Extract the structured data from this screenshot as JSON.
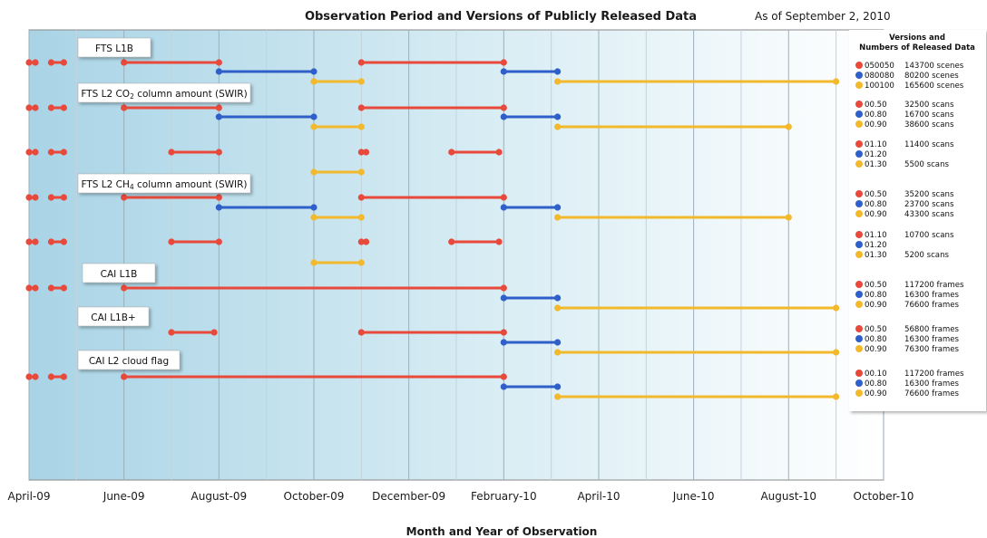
{
  "chart_data": {
    "type": "timeline",
    "title": "Observation Period and Versions of Publicly Released Data",
    "subtitle": "As of September 2, 2010",
    "xlabel": "Month and Year of Observation",
    "x_ticks": [
      "April-09",
      "June-09",
      "August-09",
      "October-09",
      "December-09",
      "February-10",
      "April-10",
      "June-10",
      "August-10",
      "October-10"
    ],
    "xlim": [
      "2009-04",
      "2010-10"
    ],
    "grid": "vertical monthly",
    "legend_title": "Versions and Numbers of Released Data",
    "colors": {
      "red": "#e8493a",
      "blue": "#2f5fc9",
      "yellow": "#f2b92c"
    },
    "products": [
      {
        "name": "FTS L1B",
        "series": [
          {
            "version": "050050",
            "count": "143700 scenes",
            "color": "red",
            "segments": [
              [
                "2009-04-01",
                "2009-04-05"
              ],
              [
                "2009-04-15",
                "2009-04-23"
              ],
              [
                "2009-06-01",
                "2009-08-01"
              ],
              [
                "2009-11-01",
                "2010-02-01"
              ]
            ]
          },
          {
            "version": "080080",
            "count": "80200 scenes",
            "color": "blue",
            "segments": [
              [
                "2009-08-01",
                "2009-10-01"
              ],
              [
                "2010-02-01",
                "2010-03-05"
              ]
            ]
          },
          {
            "version": "100100",
            "count": "165600 scenes",
            "color": "yellow",
            "segments": [
              [
                "2009-10-01",
                "2009-11-01"
              ],
              [
                "2010-03-05",
                "2010-09-01"
              ]
            ]
          }
        ]
      },
      {
        "name": "FTS L2 CO",
        "name_sub": "2",
        "name_rest": " column amount (SWIR)",
        "series": [
          {
            "version": "00.50",
            "count": "32500 scans",
            "color": "red",
            "segments": [
              [
                "2009-04-01",
                "2009-04-05"
              ],
              [
                "2009-04-15",
                "2009-04-23"
              ],
              [
                "2009-06-01",
                "2009-08-01"
              ],
              [
                "2009-11-01",
                "2010-02-01"
              ]
            ]
          },
          {
            "version": "00.80",
            "count": "16700 scans",
            "color": "blue",
            "segments": [
              [
                "2009-08-01",
                "2009-10-01"
              ],
              [
                "2010-02-01",
                "2010-03-05"
              ]
            ]
          },
          {
            "version": "00.90",
            "count": "38600 scans",
            "color": "yellow",
            "segments": [
              [
                "2009-10-01",
                "2009-11-01"
              ],
              [
                "2010-03-05",
                "2010-08-01"
              ]
            ]
          }
        ]
      },
      {
        "name": "",
        "series": [
          {
            "version": "01.10",
            "count": "11400 scans",
            "color": "red",
            "segments": [
              [
                "2009-04-01",
                "2009-04-05"
              ],
              [
                "2009-04-15",
                "2009-04-23"
              ],
              [
                "2009-07-01",
                "2009-08-01"
              ],
              [
                "2009-11-01",
                "2009-11-04"
              ],
              [
                "2009-12-28",
                "2010-01-28"
              ]
            ]
          },
          {
            "version": "01.20",
            "count": "",
            "color": "blue",
            "segments": []
          },
          {
            "version": "01.30",
            "count": "5500 scans",
            "color": "yellow",
            "segments": [
              [
                "2009-10-01",
                "2009-11-01"
              ]
            ]
          }
        ]
      },
      {
        "name": "FTS L2 CH",
        "name_sub": "4",
        "name_rest": " column amount (SWIR)",
        "series": [
          {
            "version": "00.50",
            "count": "35200 scans",
            "color": "red",
            "segments": [
              [
                "2009-04-01",
                "2009-04-05"
              ],
              [
                "2009-04-15",
                "2009-04-23"
              ],
              [
                "2009-06-01",
                "2009-08-01"
              ],
              [
                "2009-11-01",
                "2010-02-01"
              ]
            ]
          },
          {
            "version": "00.80",
            "count": "23700 scans",
            "color": "blue",
            "segments": [
              [
                "2009-08-01",
                "2009-10-01"
              ],
              [
                "2010-02-01",
                "2010-03-05"
              ]
            ]
          },
          {
            "version": "00.90",
            "count": "43300 scans",
            "color": "yellow",
            "segments": [
              [
                "2009-10-01",
                "2009-11-01"
              ],
              [
                "2010-03-05",
                "2010-08-01"
              ]
            ]
          }
        ]
      },
      {
        "name": "",
        "series": [
          {
            "version": "01.10",
            "count": "10700 scans",
            "color": "red",
            "segments": [
              [
                "2009-04-01",
                "2009-04-05"
              ],
              [
                "2009-04-15",
                "2009-04-23"
              ],
              [
                "2009-07-01",
                "2009-08-01"
              ],
              [
                "2009-11-01",
                "2009-11-04"
              ],
              [
                "2009-12-28",
                "2010-01-28"
              ]
            ]
          },
          {
            "version": "01.20",
            "count": "",
            "color": "blue",
            "segments": []
          },
          {
            "version": "01.30",
            "count": "5200 scans",
            "color": "yellow",
            "segments": [
              [
                "2009-10-01",
                "2009-11-01"
              ]
            ]
          }
        ]
      },
      {
        "name": "CAI L1B",
        "series": [
          {
            "version": "00.50",
            "count": "117200 frames",
            "color": "red",
            "segments": [
              [
                "2009-04-01",
                "2009-04-05"
              ],
              [
                "2009-04-15",
                "2009-04-23"
              ],
              [
                "2009-06-01",
                "2010-02-01"
              ]
            ]
          },
          {
            "version": "00.80",
            "count": "16300 frames",
            "color": "blue",
            "segments": [
              [
                "2010-02-01",
                "2010-03-05"
              ]
            ]
          },
          {
            "version": "00.90",
            "count": "76600 frames",
            "color": "yellow",
            "segments": [
              [
                "2010-03-05",
                "2010-09-01"
              ]
            ]
          }
        ]
      },
      {
        "name": "CAI L1B+",
        "series": [
          {
            "version": "00.50",
            "count": "56800 frames",
            "color": "red",
            "segments": [
              [
                "2009-07-01",
                "2009-07-28"
              ],
              [
                "2009-11-01",
                "2010-02-01"
              ]
            ]
          },
          {
            "version": "00.80",
            "count": "16300 frames",
            "color": "blue",
            "segments": [
              [
                "2010-02-01",
                "2010-03-05"
              ]
            ]
          },
          {
            "version": "00.90",
            "count": "76300 frames",
            "color": "yellow",
            "segments": [
              [
                "2010-03-05",
                "2010-09-01"
              ]
            ]
          }
        ]
      },
      {
        "name": "CAI L2 cloud flag",
        "series": [
          {
            "version": "00.10",
            "count": "117200 frames",
            "color": "red",
            "segments": [
              [
                "2009-04-01",
                "2009-04-05"
              ],
              [
                "2009-04-15",
                "2009-04-23"
              ],
              [
                "2009-06-01",
                "2010-02-01"
              ]
            ]
          },
          {
            "version": "00.80",
            "count": "16300 frames",
            "color": "blue",
            "segments": [
              [
                "2010-02-01",
                "2010-03-05"
              ]
            ]
          },
          {
            "version": "00.90",
            "count": "76600 frames",
            "color": "yellow",
            "segments": [
              [
                "2010-03-05",
                "2010-09-01"
              ]
            ]
          }
        ]
      }
    ]
  }
}
